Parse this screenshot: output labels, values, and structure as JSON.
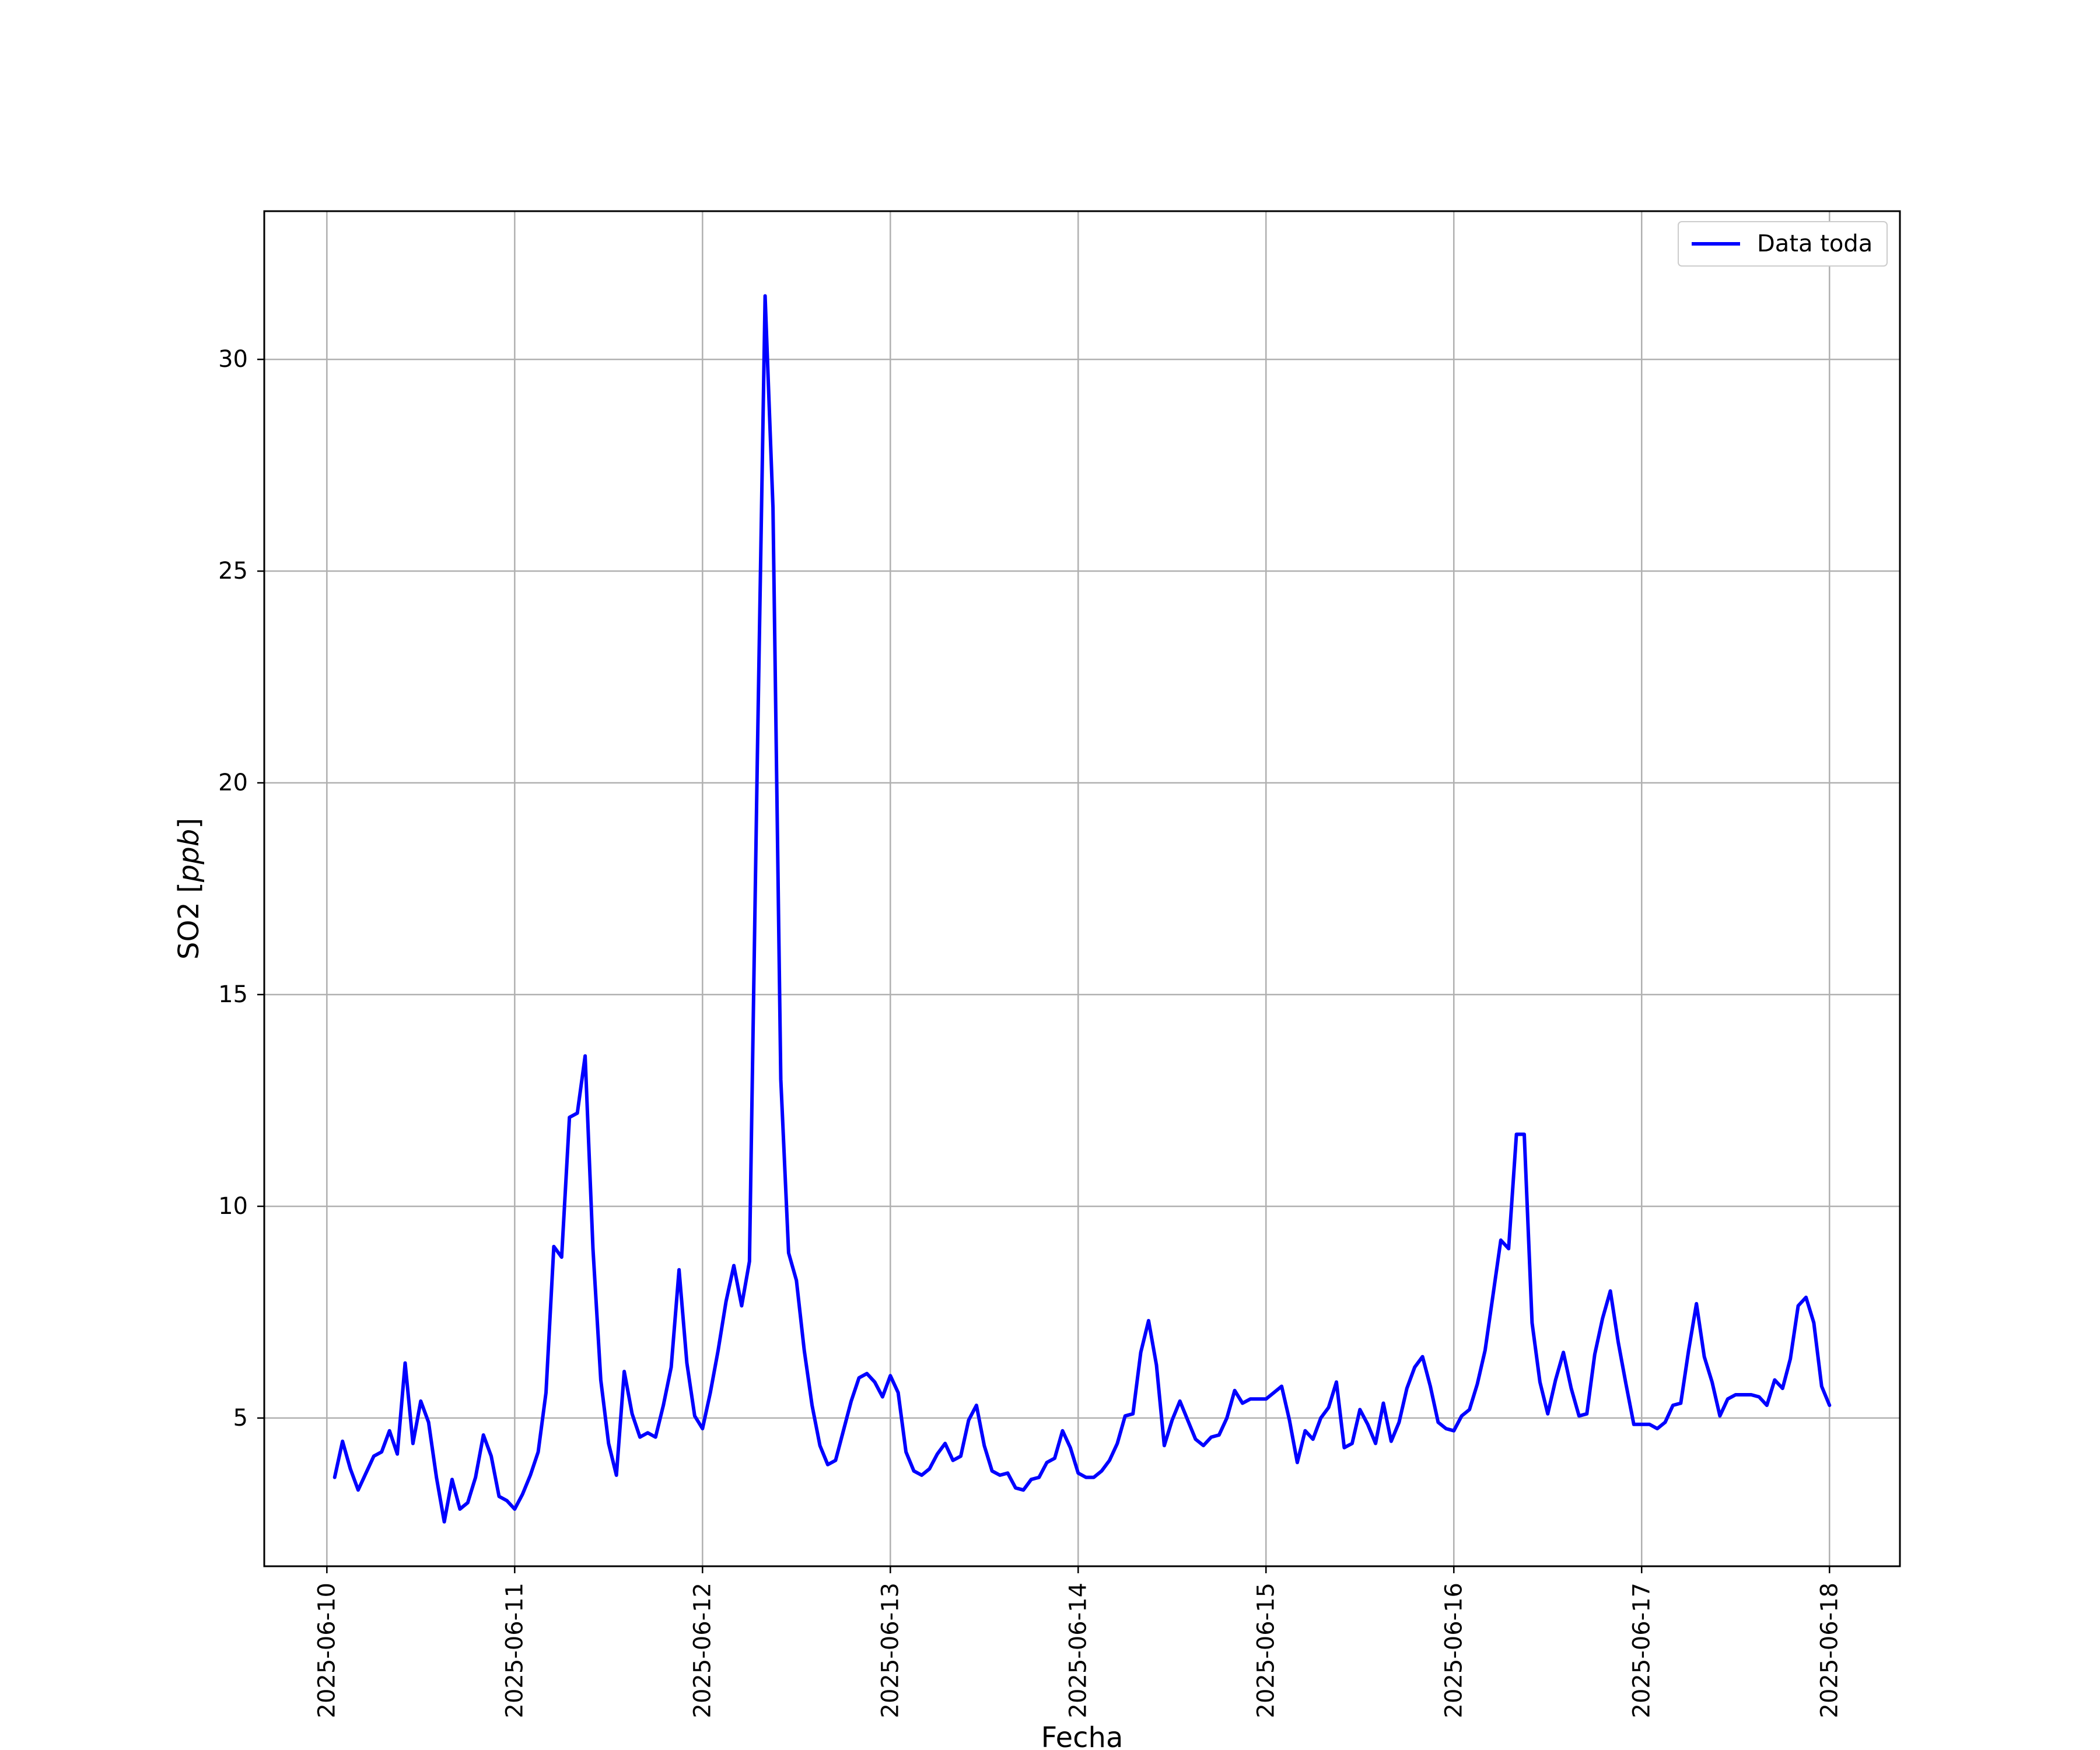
{
  "chart_data": {
    "type": "line",
    "title": "",
    "xlabel": "Fecha",
    "ylabel_prefix": "SO2 [",
    "ylabel_unit": "ppb",
    "ylabel_suffix": "]",
    "grid": true,
    "legend_position": "top-right",
    "x_start": "2025-06-10 01:00",
    "x_step_hours": 1,
    "xlim": [
      "2025-06-09 16:00",
      "2025-06-18 09:00"
    ],
    "ylim": [
      1.5,
      33.5
    ],
    "x_ticks": [
      "2025-06-10",
      "2025-06-11",
      "2025-06-12",
      "2025-06-13",
      "2025-06-14",
      "2025-06-15",
      "2025-06-16",
      "2025-06-17",
      "2025-06-18"
    ],
    "y_ticks": [
      "5",
      "10",
      "15",
      "20",
      "25",
      "30"
    ],
    "series": [
      {
        "name": "Data toda",
        "color": "#0000ff",
        "values": [
          3.6,
          4.45,
          3.8,
          3.3,
          3.7,
          4.1,
          4.2,
          4.7,
          4.15,
          6.3,
          4.4,
          5.4,
          4.9,
          3.6,
          2.55,
          3.55,
          2.85,
          3.0,
          3.6,
          4.6,
          4.1,
          3.15,
          3.05,
          2.85,
          3.2,
          3.65,
          4.2,
          5.6,
          9.05,
          8.8,
          12.1,
          12.2,
          13.55,
          9.0,
          5.9,
          4.4,
          3.65,
          6.1,
          5.1,
          4.55,
          4.65,
          4.55,
          5.3,
          6.2,
          8.5,
          6.3,
          5.05,
          4.75,
          5.6,
          6.6,
          7.75,
          8.6,
          7.65,
          8.7,
          20.5,
          31.5,
          26.5,
          13.0,
          8.9,
          8.25,
          6.6,
          5.3,
          4.35,
          3.9,
          4.0,
          4.7,
          5.4,
          5.95,
          6.05,
          5.85,
          5.5,
          6.0,
          5.6,
          4.2,
          3.75,
          3.65,
          3.8,
          4.15,
          4.4,
          4.0,
          4.1,
          4.95,
          5.3,
          4.35,
          3.75,
          3.65,
          3.7,
          3.35,
          3.3,
          3.55,
          3.6,
          3.95,
          4.05,
          4.7,
          4.3,
          3.7,
          3.6,
          3.6,
          3.75,
          4.0,
          4.4,
          5.05,
          5.1,
          6.55,
          7.3,
          6.25,
          4.35,
          4.95,
          5.4,
          4.95,
          4.5,
          4.35,
          4.55,
          4.6,
          5.0,
          5.65,
          5.35,
          5.45,
          5.45,
          5.45,
          5.6,
          5.75,
          4.95,
          3.95,
          4.7,
          4.5,
          5.0,
          5.25,
          5.85,
          4.3,
          4.4,
          5.2,
          4.85,
          4.4,
          5.35,
          4.45,
          4.9,
          5.7,
          6.2,
          6.45,
          5.75,
          4.9,
          4.75,
          4.7,
          5.05,
          5.2,
          5.8,
          6.6,
          7.9,
          9.2,
          9.0,
          11.7,
          11.7,
          7.25,
          5.85,
          5.1,
          5.9,
          6.55,
          5.7,
          5.05,
          5.1,
          6.5,
          7.35,
          8.0,
          6.8,
          5.8,
          4.85,
          4.85,
          4.85,
          4.75,
          4.9,
          5.3,
          5.35,
          6.6,
          7.7,
          6.45,
          5.85,
          5.05,
          5.45,
          5.55,
          5.55,
          5.55,
          5.5,
          5.3,
          5.9,
          5.7,
          6.4,
          7.65,
          7.85,
          7.25,
          5.75,
          5.3
        ]
      }
    ]
  }
}
